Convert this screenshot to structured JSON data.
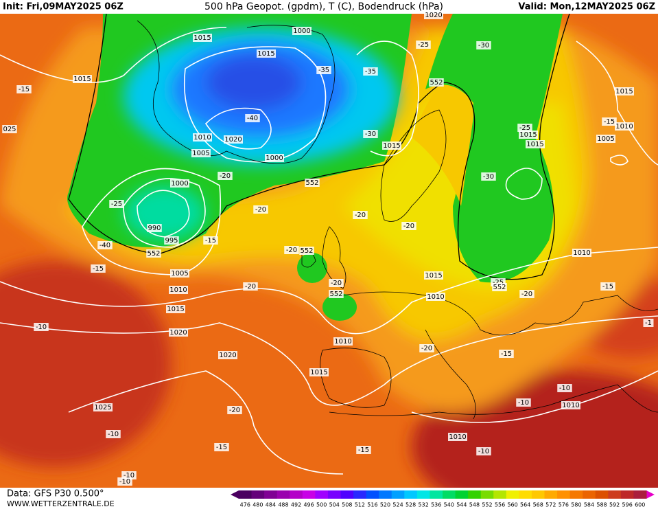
{
  "header": {
    "init": "Init: Fri,09MAY2025 06Z",
    "title": "500 hPa Geopot. (gpdm), T (C), Bodendruck (hPa)",
    "valid": "Valid: Mon,12MAY2025 06Z"
  },
  "footer": {
    "source": "Data: GFS P30 0.500°",
    "site": "WWW.WETTERZENTRALE.DE"
  },
  "legend": {
    "levels": [
      476,
      480,
      484,
      488,
      492,
      496,
      500,
      504,
      508,
      512,
      516,
      520,
      524,
      528,
      532,
      536,
      540,
      544,
      548,
      552,
      556,
      560,
      564,
      568,
      572,
      576,
      580,
      584,
      588,
      592,
      596,
      600
    ],
    "colors": [
      "#4b0060",
      "#64007a",
      "#800094",
      "#9a00ae",
      "#b400c8",
      "#c800e6",
      "#a000ff",
      "#7800ff",
      "#5000ff",
      "#2828ff",
      "#0050ff",
      "#0078ff",
      "#00a0ff",
      "#00c8ff",
      "#00e6e6",
      "#00e6a0",
      "#00dc64",
      "#00d232",
      "#32d200",
      "#78dc00",
      "#b4e600",
      "#f0f000",
      "#ffdc00",
      "#ffc800",
      "#ffaa00",
      "#ff9100",
      "#f57800",
      "#eb6400",
      "#dc5000",
      "#cd3c1e",
      "#be2828",
      "#aa1e3c"
    ]
  },
  "map": {
    "labels": [
      "1015",
      "1000",
      "1015",
      "-35",
      "-35",
      "-25",
      "-30",
      "1020",
      "552",
      "-15",
      "1015",
      "025",
      "1010",
      "1020",
      "1005",
      "1000",
      "-40",
      "-30",
      "1015",
      "-25",
      "1015",
      "1015",
      "1015",
      "-15",
      "1010",
      "1005",
      "-30",
      "552",
      "-20",
      "1000",
      "-25",
      "-20",
      "-20",
      "-20",
      "990",
      "995",
      "-15",
      "-40",
      "552",
      "-20",
      "552",
      "1010",
      "-15",
      "1005",
      "1015",
      "-20",
      "-25",
      "552",
      "-15",
      "-20",
      "1010",
      "552",
      "1010",
      "-20",
      "1015",
      "-10",
      "1020",
      "1010",
      "-20",
      "-15",
      "1020",
      "1015",
      "-10",
      "-10",
      "1010",
      "1025",
      "-20",
      "-10",
      "1010",
      "-15",
      "-15",
      "-10",
      "-10",
      "-10",
      "-1"
    ]
  }
}
